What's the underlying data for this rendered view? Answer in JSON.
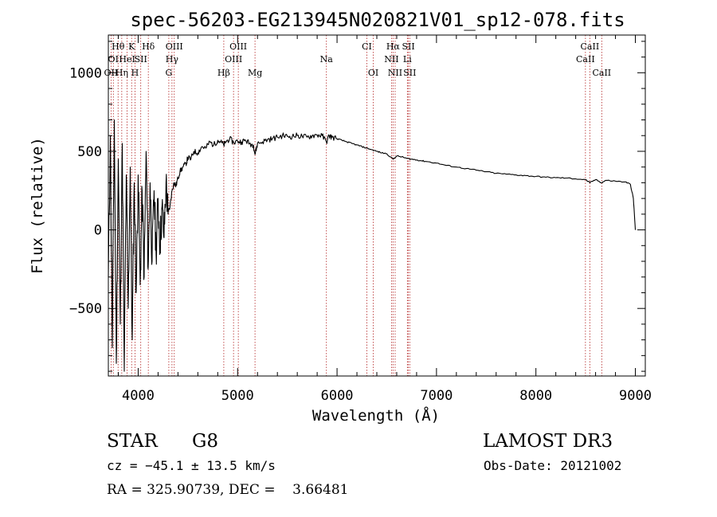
{
  "chart_data": {
    "type": "line",
    "title": "spec-56203-EG213945N020821V01_sp12-078.fits",
    "xlabel": "Wavelength (Å)",
    "ylabel": "Flux (relative)",
    "xlim": [
      3700,
      9100
    ],
    "ylim": [
      -930,
      1240
    ],
    "xticks": [
      4000,
      5000,
      6000,
      7000,
      8000,
      9000
    ],
    "xtick_labels": [
      "4000",
      "5000",
      "6000",
      "7000",
      "8000",
      "9000"
    ],
    "yticks": [
      -500,
      0,
      500,
      1000
    ],
    "ytick_labels": [
      "−500",
      "0",
      "500",
      "1000"
    ],
    "series": [
      {
        "name": "flux",
        "x": [
          3700,
          3720,
          3740,
          3760,
          3780,
          3800,
          3820,
          3840,
          3860,
          3880,
          3900,
          3920,
          3940,
          3960,
          3980,
          4000,
          4020,
          4040,
          4060,
          4080,
          4100,
          4120,
          4140,
          4160,
          4180,
          4200,
          4220,
          4240,
          4260,
          4280,
          4300,
          4320,
          4340,
          4360,
          4380,
          4400,
          4420,
          4450,
          4480,
          4500,
          4530,
          4560,
          4600,
          4640,
          4680,
          4720,
          4760,
          4800,
          4830,
          4861,
          4880,
          4920,
          4960,
          5000,
          5040,
          5080,
          5120,
          5160,
          5175,
          5200,
          5250,
          5300,
          5350,
          5400,
          5450,
          5500,
          5550,
          5600,
          5650,
          5700,
          5750,
          5800,
          5850,
          5893,
          5920,
          5950,
          6000,
          6050,
          6100,
          6150,
          6200,
          6250,
          6300,
          6350,
          6400,
          6450,
          6500,
          6563,
          6600,
          6650,
          6700,
          6750,
          6800,
          6850,
          6900,
          7000,
          7100,
          7200,
          7300,
          7400,
          7500,
          7600,
          7700,
          7800,
          7900,
          8000,
          8100,
          8200,
          8300,
          8400,
          8498,
          8542,
          8600,
          8662,
          8700,
          8800,
          8900,
          8950,
          8980,
          9000
        ],
        "values": [
          -300,
          600,
          -750,
          700,
          -850,
          450,
          -600,
          550,
          -900,
          350,
          -500,
          400,
          -700,
          300,
          -400,
          350,
          -350,
          250,
          -300,
          500,
          -250,
          300,
          -200,
          250,
          -150,
          200,
          -100,
          150,
          -50,
          300,
          100,
          150,
          250,
          300,
          280,
          330,
          370,
          400,
          420,
          460,
          450,
          500,
          490,
          530,
          520,
          560,
          540,
          570,
          560,
          540,
          560,
          580,
          555,
          565,
          560,
          570,
          550,
          540,
          480,
          550,
          560,
          575,
          580,
          590,
          600,
          595,
          595,
          600,
          595,
          590,
          600,
          605,
          600,
          560,
          600,
          590,
          580,
          570,
          560,
          550,
          540,
          530,
          520,
          510,
          500,
          490,
          485,
          450,
          470,
          465,
          455,
          450,
          445,
          440,
          435,
          425,
          410,
          400,
          390,
          380,
          370,
          360,
          355,
          350,
          345,
          340,
          335,
          332,
          330,
          325,
          320,
          300,
          320,
          300,
          315,
          310,
          305,
          290,
          200,
          0
        ]
      }
    ],
    "line_names": [
      "Hθ",
      "K",
      "Hδ",
      "OIII",
      "OIII",
      "CI",
      "Hα",
      "SII",
      "CaII",
      "OI",
      "HeI",
      "SII",
      "Hγ",
      "OIII",
      "Na",
      "NII",
      "Li",
      "CaII",
      "OII",
      "Hη",
      "H",
      "G",
      "Hβ",
      "Mg",
      "OI",
      "NII",
      "SII",
      "CaII"
    ],
    "lines": [
      {
        "x": 3727,
        "label": "OII",
        "row": 3
      },
      {
        "x": 3750,
        "label": "OI",
        "row": 2
      },
      {
        "x": 3798,
        "label": "Hθ",
        "row": 1
      },
      {
        "x": 3835,
        "label": "Hη",
        "row": 3
      },
      {
        "x": 3889,
        "label": "HeI",
        "row": 2
      },
      {
        "x": 3934,
        "label": "K",
        "row": 1
      },
      {
        "x": 3968,
        "label": "H",
        "row": 3
      },
      {
        "x": 4026,
        "label": "SII",
        "row": 2
      },
      {
        "x": 4102,
        "label": "Hδ",
        "row": 1
      },
      {
        "x": 4308,
        "label": "G",
        "row": 3
      },
      {
        "x": 4340,
        "label": "Hγ",
        "row": 2
      },
      {
        "x": 4363,
        "label": "OIII",
        "row": 1
      },
      {
        "x": 4861,
        "label": "Hβ",
        "row": 3
      },
      {
        "x": 4959,
        "label": "OIII",
        "row": 2
      },
      {
        "x": 5007,
        "label": "OIII",
        "row": 1
      },
      {
        "x": 5175,
        "label": "Mg",
        "row": 3
      },
      {
        "x": 5893,
        "label": "Na",
        "row": 2
      },
      {
        "x": 6300,
        "label": "CI",
        "row": 1
      },
      {
        "x": 6364,
        "label": "OI",
        "row": 3
      },
      {
        "x": 6548,
        "label": "NII",
        "row": 2
      },
      {
        "x": 6563,
        "label": "Hα",
        "row": 1
      },
      {
        "x": 6584,
        "label": "NII",
        "row": 3
      },
      {
        "x": 6707,
        "label": "Li",
        "row": 2
      },
      {
        "x": 6717,
        "label": "SII",
        "row": 1
      },
      {
        "x": 6731,
        "label": "SII",
        "row": 3
      },
      {
        "x": 8498,
        "label": "CaII",
        "row": 2
      },
      {
        "x": 8542,
        "label": "CaII",
        "row": 1
      },
      {
        "x": 8662,
        "label": "CaII",
        "row": 3
      }
    ],
    "line_color": "#b22222",
    "curve_color": "#000000"
  },
  "info": {
    "star_type": "STAR",
    "subclass": "G8",
    "survey": "LAMOST DR3",
    "cz": "cz = −45.1 ± 13.5 km/s",
    "obs_date": "Obs-Date: 20121002",
    "coords": "RA = 325.90739, DEC =    3.66481"
  }
}
